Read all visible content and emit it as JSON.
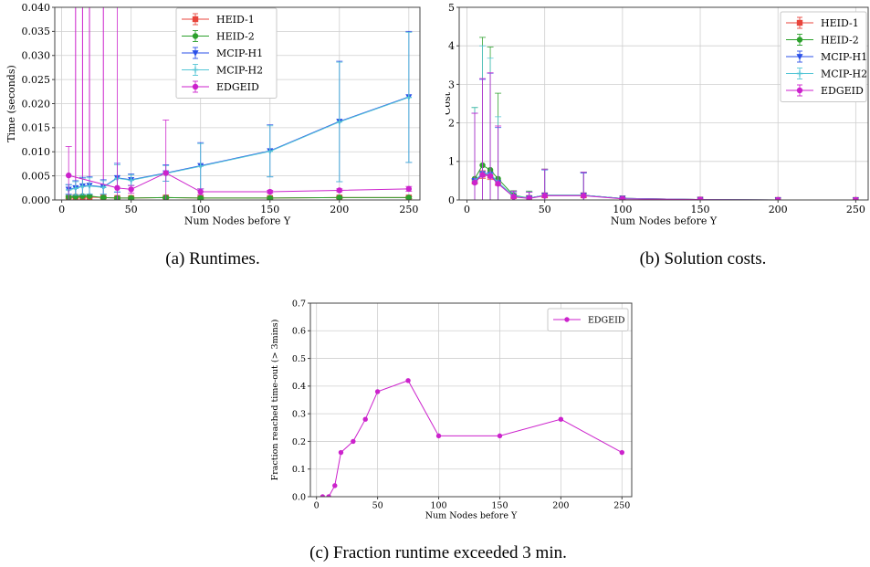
{
  "captions": {
    "a": "(a) Runtimes.",
    "b": "(b) Solution costs.",
    "c": "(c) Fraction runtime exceeded 3 min."
  },
  "chart_data": [
    {
      "id": "a",
      "type": "line",
      "xlabel": "Num Nodes before Y",
      "ylabel": "Time (seconds)",
      "xlim": [
        -5,
        258
      ],
      "ylim": [
        0,
        0.04
      ],
      "xticks": [
        0,
        50,
        100,
        150,
        200,
        250
      ],
      "yticks": [
        0.0,
        0.005,
        0.01,
        0.015,
        0.02,
        0.025,
        0.03,
        0.035,
        0.04
      ],
      "ytick_labels": [
        "0.000",
        "0.005",
        "0.010",
        "0.015",
        "0.020",
        "0.025",
        "0.030",
        "0.035",
        "0.040"
      ],
      "grid": true,
      "legend_position": "top-center",
      "series": [
        {
          "name": "HEID-1",
          "color": "#e8453c",
          "marker": "square",
          "x": [
            5,
            10,
            15,
            20,
            30,
            40,
            50,
            75,
            100,
            150,
            200,
            250
          ],
          "y": [
            0.0005,
            0.0006,
            0.0006,
            0.0006,
            0.0005,
            0.0004,
            0.0004,
            0.0005,
            0.0004,
            0.0004,
            0.0005,
            0.0005
          ],
          "err": [
            0.0002,
            0.0002,
            0.0002,
            0.0002,
            0.0002,
            0.0002,
            0.0002,
            0.0002,
            0.0002,
            0.0002,
            0.0002,
            0.0002
          ]
        },
        {
          "name": "HEID-2",
          "color": "#2ca02c",
          "marker": "circle",
          "x": [
            5,
            10,
            15,
            20,
            30,
            40,
            50,
            75,
            100,
            150,
            200,
            250
          ],
          "y": [
            0.0006,
            0.0007,
            0.0008,
            0.0008,
            0.0005,
            0.0004,
            0.0004,
            0.0005,
            0.0004,
            0.0004,
            0.0005,
            0.0005
          ],
          "err": [
            0.0002,
            0.0002,
            0.0002,
            0.0002,
            0.0002,
            0.0002,
            0.0002,
            0.0002,
            0.0002,
            0.0002,
            0.0002,
            0.0002
          ]
        },
        {
          "name": "MCIP-H1",
          "color": "#2b50e8",
          "marker": "triangle-down",
          "x": [
            5,
            10,
            15,
            20,
            30,
            40,
            50,
            75,
            100,
            150,
            200,
            250
          ],
          "y": [
            0.0022,
            0.0025,
            0.0029,
            0.003,
            0.0027,
            0.0046,
            0.0042,
            0.0056,
            0.0071,
            0.0102,
            0.0163,
            0.0214
          ],
          "err": [
            0.001,
            0.0015,
            0.0018,
            0.0018,
            0.0015,
            0.003,
            0.0012,
            0.0017,
            0.0048,
            0.0054,
            0.0125,
            0.0136
          ]
        },
        {
          "name": "MCIP-H2",
          "color": "#55c6d6",
          "marker": "plus",
          "x": [
            5,
            10,
            15,
            20,
            30,
            40,
            50,
            75,
            100,
            150,
            200,
            250
          ],
          "y": [
            0.0021,
            0.0024,
            0.0028,
            0.0029,
            0.0026,
            0.0045,
            0.0041,
            0.0055,
            0.007,
            0.0101,
            0.0162,
            0.0213
          ],
          "err": [
            0.001,
            0.0014,
            0.0017,
            0.0017,
            0.0014,
            0.0028,
            0.0011,
            0.0016,
            0.0047,
            0.0053,
            0.0124,
            0.0135
          ]
        },
        {
          "name": "EDGEID",
          "color": "#cc22cc",
          "marker": "circle",
          "x": [
            5,
            40,
            50,
            75,
            100,
            150,
            200,
            250
          ],
          "y": [
            0.0051,
            0.0025,
            0.0022,
            0.0056,
            0.0017,
            0.0017,
            0.002,
            0.0023
          ],
          "err": [
            0.006,
            0.055,
            0.0008,
            0.011,
            0.0006,
            0.0003,
            0.0003,
            0.0005
          ]
        }
      ],
      "extra_whiskers": {
        "color": "#cc22cc",
        "x": [
          10,
          15,
          20,
          30
        ],
        "from": 0.0,
        "to": 0.04
      }
    },
    {
      "id": "b",
      "type": "line",
      "xlabel": "Num Nodes before Y",
      "ylabel": "Cost",
      "xlim": [
        -5,
        258
      ],
      "ylim": [
        0,
        5
      ],
      "xticks": [
        0,
        50,
        100,
        150,
        200,
        250
      ],
      "yticks": [
        0,
        1,
        2,
        3,
        4,
        5
      ],
      "ytick_labels": [
        "0",
        "1",
        "2",
        "3",
        "4",
        "5"
      ],
      "grid": true,
      "legend_position": "top-right",
      "series": [
        {
          "name": "HEID-1",
          "color": "#e8453c",
          "marker": "square",
          "x": [
            5,
            10,
            15,
            20,
            30,
            40,
            50,
            75,
            100,
            150,
            200,
            250
          ],
          "y": [
            0.48,
            0.66,
            0.63,
            0.44,
            0.1,
            0.05,
            0.12,
            0.12,
            0.04,
            0.01,
            0.0,
            0.0
          ],
          "err": [
            0.05,
            0.1,
            0.1,
            0.05,
            0.05,
            0.05,
            0.05,
            0.05,
            0.02,
            0.01,
            0.0,
            0.0
          ]
        },
        {
          "name": "HEID-2",
          "color": "#2ca02c",
          "marker": "circle",
          "x": [
            5,
            10,
            15,
            20,
            30,
            40,
            50,
            75,
            100,
            150,
            200,
            250
          ],
          "y": [
            0.55,
            0.9,
            0.78,
            0.55,
            0.12,
            0.05,
            0.12,
            0.12,
            0.04,
            0.01,
            0.0,
            0.0
          ],
          "err": [
            1.85,
            3.32,
            3.19,
            2.22,
            0.12,
            0.18,
            0.68,
            0.6,
            0.02,
            0.01,
            0.0,
            0.0
          ]
        },
        {
          "name": "MCIP-H1",
          "color": "#2b50e8",
          "marker": "triangle-down",
          "x": [
            5,
            10,
            15,
            20,
            30,
            40,
            50,
            75,
            100,
            150,
            200,
            250
          ],
          "y": [
            0.5,
            0.68,
            0.66,
            0.45,
            0.09,
            0.05,
            0.12,
            0.12,
            0.04,
            0.01,
            0.0,
            0.0
          ],
          "err": [
            1.75,
            2.45,
            2.63,
            1.43,
            0.12,
            0.15,
            0.66,
            0.58,
            0.02,
            0.01,
            0.0,
            0.0
          ]
        },
        {
          "name": "MCIP-H2",
          "color": "#55c6d6",
          "marker": "plus",
          "x": [
            5,
            10,
            15,
            20,
            30,
            40,
            50,
            75,
            100,
            150,
            200,
            250
          ],
          "y": [
            0.5,
            0.7,
            0.68,
            0.46,
            0.1,
            0.05,
            0.12,
            0.12,
            0.04,
            0.01,
            0.0,
            0.0
          ],
          "err": [
            1.9,
            3.3,
            3.0,
            1.7,
            0.12,
            0.16,
            0.67,
            0.6,
            0.02,
            0.01,
            0.0,
            0.0
          ]
        },
        {
          "name": "EDGEID",
          "color": "#cc22cc",
          "marker": "circle",
          "x": [
            5,
            10,
            15,
            20,
            30,
            40,
            50,
            75,
            100,
            150,
            200,
            250
          ],
          "y": [
            0.45,
            0.65,
            0.62,
            0.42,
            0.08,
            0.04,
            0.11,
            0.11,
            0.03,
            0.01,
            0.0,
            0.0
          ],
          "err": [
            1.8,
            2.5,
            2.68,
            1.5,
            0.15,
            0.16,
            0.69,
            0.61,
            0.02,
            0.01,
            0.0,
            0.0
          ]
        }
      ]
    },
    {
      "id": "c",
      "type": "line",
      "xlabel": "Num Nodes before Y",
      "ylabel": "Fraction reached time-out (> 3mins)",
      "xlim": [
        -5,
        258
      ],
      "ylim": [
        0,
        0.7
      ],
      "xticks": [
        0,
        50,
        100,
        150,
        200,
        250
      ],
      "yticks": [
        0.0,
        0.1,
        0.2,
        0.3,
        0.4,
        0.5,
        0.6,
        0.7
      ],
      "ytick_labels": [
        "0.0",
        "0.1",
        "0.2",
        "0.3",
        "0.4",
        "0.5",
        "0.6",
        "0.7"
      ],
      "grid": true,
      "legend_position": "top-right",
      "series": [
        {
          "name": "EDGEID",
          "color": "#cc22cc",
          "marker": "circle",
          "x": [
            5,
            10,
            15,
            20,
            30,
            40,
            50,
            75,
            100,
            150,
            200,
            250
          ],
          "y": [
            0.0,
            0.0,
            0.04,
            0.16,
            0.2,
            0.28,
            0.38,
            0.42,
            0.22,
            0.22,
            0.28,
            0.16
          ]
        }
      ]
    }
  ]
}
